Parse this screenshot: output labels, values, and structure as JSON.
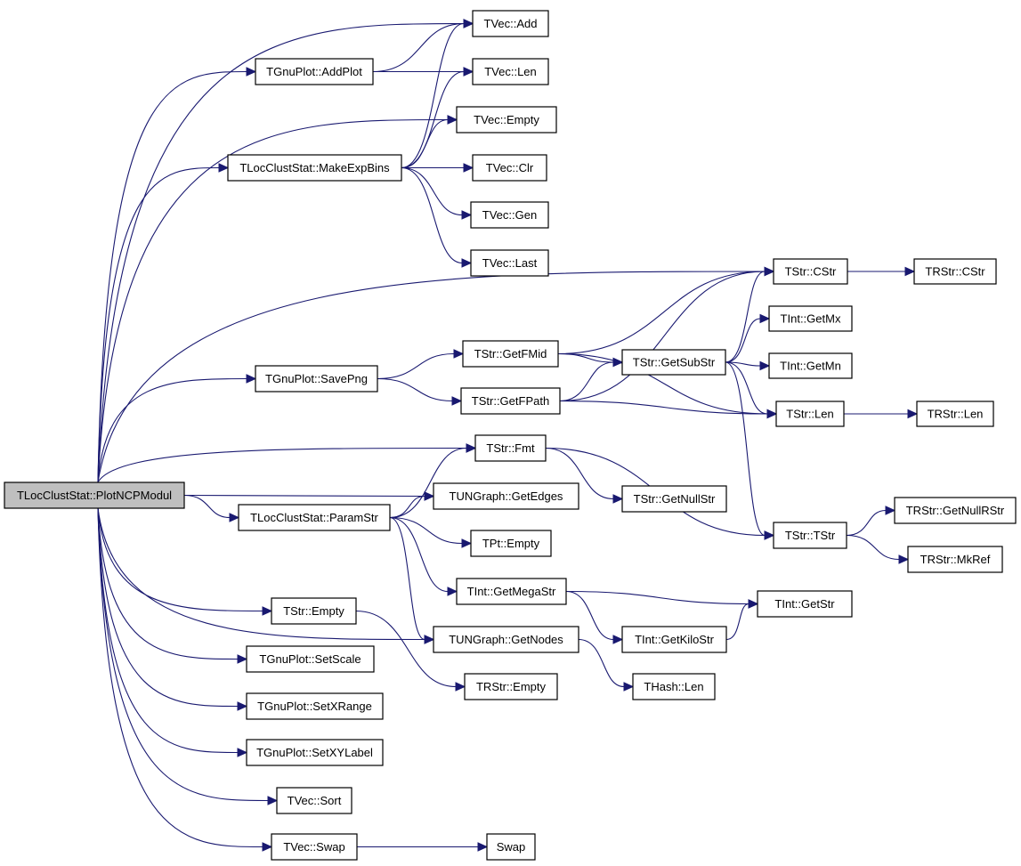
{
  "colors": {
    "edge": "#191970",
    "root_fill": "#bfbfbf",
    "node_fill": "#ffffff"
  },
  "nodes": {
    "root": "TLocClustStat::PlotNCPModul",
    "vadd": "TVec::Add",
    "addplot": "TGnuPlot::AddPlot",
    "vlen": "TVec::Len",
    "vempty": "TVec::Empty",
    "expbins": "TLocClustStat::MakeExpBins",
    "vclr": "TVec::Clr",
    "vgen": "TVec::Gen",
    "vlast": "TVec::Last",
    "scstr": "TStr::CStr",
    "rcstr": "TRStr::CStr",
    "getmx": "TInt::GetMx",
    "fmid": "TStr::GetFMid",
    "substr": "TStr::GetSubStr",
    "getmn": "TInt::GetMn",
    "savepng": "TGnuPlot::SavePng",
    "fpath": "TStr::GetFPath",
    "slen": "TStr::Len",
    "rlen": "TRStr::Len",
    "fmt": "TStr::Fmt",
    "edges": "TUNGraph::GetEdges",
    "nullstr": "TStr::GetNullStr",
    "paramstr": "TLocClustStat::ParamStr",
    "nullrstr": "TRStr::GetNullRStr",
    "tstr": "TStr::TStr",
    "ptempty": "TPt::Empty",
    "mkref": "TRStr::MkRef",
    "megastr": "TInt::GetMegaStr",
    "getstr": "TInt::GetStr",
    "sempty": "TStr::Empty",
    "getnodes": "TUNGraph::GetNodes",
    "kilostr": "TInt::GetKiloStr",
    "setscale": "TGnuPlot::SetScale",
    "rempty": "TRStr::Empty",
    "hlen": "THash::Len",
    "setxrange": "TGnuPlot::SetXRange",
    "setxylabel": "TGnuPlot::SetXYLabel",
    "vsort": "TVec::Sort",
    "vswap": "TVec::Swap",
    "swap": "Swap"
  },
  "edges": [
    [
      "root",
      "vadd"
    ],
    [
      "root",
      "addplot"
    ],
    [
      "root",
      "vempty"
    ],
    [
      "root",
      "expbins"
    ],
    [
      "root",
      "scstr"
    ],
    [
      "root",
      "savepng"
    ],
    [
      "root",
      "fmt"
    ],
    [
      "root",
      "edges"
    ],
    [
      "root",
      "paramstr"
    ],
    [
      "root",
      "getnodes"
    ],
    [
      "root",
      "sempty"
    ],
    [
      "root",
      "setscale"
    ],
    [
      "root",
      "setxrange"
    ],
    [
      "root",
      "setxylabel"
    ],
    [
      "root",
      "vsort"
    ],
    [
      "root",
      "vswap"
    ],
    [
      "addplot",
      "vadd"
    ],
    [
      "addplot",
      "vlen"
    ],
    [
      "expbins",
      "vadd"
    ],
    [
      "expbins",
      "vlen"
    ],
    [
      "expbins",
      "vempty"
    ],
    [
      "expbins",
      "vclr"
    ],
    [
      "expbins",
      "vgen"
    ],
    [
      "expbins",
      "vlast"
    ],
    [
      "savepng",
      "fmid"
    ],
    [
      "savepng",
      "fpath"
    ],
    [
      "fmid",
      "scstr"
    ],
    [
      "fmid",
      "substr"
    ],
    [
      "fmid",
      "slen"
    ],
    [
      "fpath",
      "scstr"
    ],
    [
      "fpath",
      "substr"
    ],
    [
      "fpath",
      "slen"
    ],
    [
      "substr",
      "scstr"
    ],
    [
      "substr",
      "getmx"
    ],
    [
      "substr",
      "getmn"
    ],
    [
      "substr",
      "slen"
    ],
    [
      "substr",
      "tstr"
    ],
    [
      "scstr",
      "rcstr"
    ],
    [
      "slen",
      "rlen"
    ],
    [
      "fmt",
      "nullstr"
    ],
    [
      "fmt",
      "tstr"
    ],
    [
      "tstr",
      "nullrstr"
    ],
    [
      "tstr",
      "mkref"
    ],
    [
      "paramstr",
      "fmt"
    ],
    [
      "paramstr",
      "edges"
    ],
    [
      "paramstr",
      "ptempty"
    ],
    [
      "paramstr",
      "megastr"
    ],
    [
      "paramstr",
      "getnodes"
    ],
    [
      "megastr",
      "getstr"
    ],
    [
      "megastr",
      "kilostr"
    ],
    [
      "kilostr",
      "getstr"
    ],
    [
      "getnodes",
      "hlen"
    ],
    [
      "sempty",
      "rempty"
    ],
    [
      "vswap",
      "swap"
    ]
  ]
}
